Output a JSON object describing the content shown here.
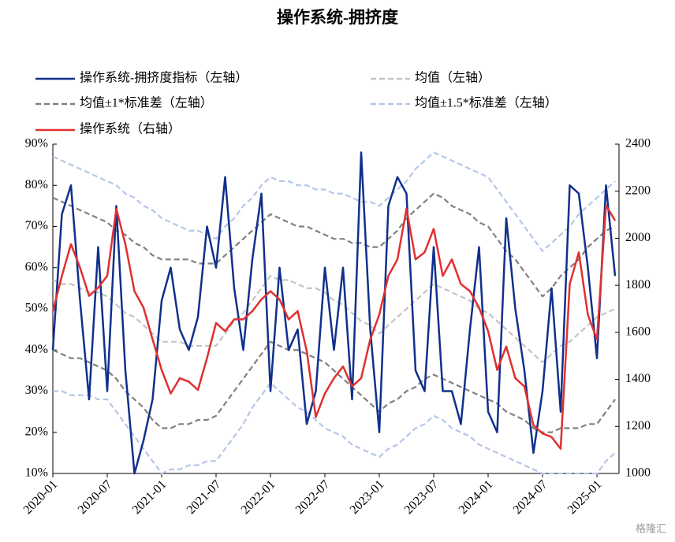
{
  "chart_data": {
    "type": "line",
    "title": "操作系统-拥挤度",
    "watermark": "格隆汇",
    "x": [
      "2020-01",
      "2020-02",
      "2020-03",
      "2020-04",
      "2020-05",
      "2020-06",
      "2020-07",
      "2020-08",
      "2020-09",
      "2020-10",
      "2020-11",
      "2020-12",
      "2021-01",
      "2021-02",
      "2021-03",
      "2021-04",
      "2021-05",
      "2021-06",
      "2021-07",
      "2021-08",
      "2021-09",
      "2021-10",
      "2021-11",
      "2021-12",
      "2022-01",
      "2022-02",
      "2022-03",
      "2022-04",
      "2022-05",
      "2022-06",
      "2022-07",
      "2022-08",
      "2022-09",
      "2022-10",
      "2022-11",
      "2022-12",
      "2023-01",
      "2023-02",
      "2023-03",
      "2023-04",
      "2023-05",
      "2023-06",
      "2023-07",
      "2023-08",
      "2023-09",
      "2023-10",
      "2023-11",
      "2023-12",
      "2024-01",
      "2024-02",
      "2024-03",
      "2024-04",
      "2024-05",
      "2024-06",
      "2024-07",
      "2024-08",
      "2024-09",
      "2024-10",
      "2024-11",
      "2024-12",
      "2025-01",
      "2025-02",
      "2025-03"
    ],
    "ylim": [
      10,
      90
    ],
    "yticks": [
      {
        "value": 10,
        "label": "10%"
      },
      {
        "value": 20,
        "label": "20%"
      },
      {
        "value": 30,
        "label": "30%"
      },
      {
        "value": 40,
        "label": "40%"
      },
      {
        "value": 50,
        "label": "50%"
      },
      {
        "value": 60,
        "label": "60%"
      },
      {
        "value": 70,
        "label": "70%"
      },
      {
        "value": 80,
        "label": "80%"
      },
      {
        "value": 90,
        "label": "90%"
      }
    ],
    "y2lim": [
      1000,
      2400
    ],
    "y2ticks": [
      1000,
      1200,
      1400,
      1600,
      1800,
      2000,
      2200,
      2400
    ],
    "series": [
      {
        "name": "均值±1.5*标准差（左轴）",
        "color": "#b4c7e7",
        "dashed": true,
        "upper": [
          87,
          86,
          85,
          84,
          83,
          82,
          81,
          80,
          78,
          77,
          75,
          74,
          72,
          71,
          70,
          69,
          69,
          68,
          67,
          70,
          72,
          75,
          77,
          80,
          82,
          81,
          81,
          80,
          80,
          79,
          79,
          78,
          78,
          77,
          76,
          76,
          75,
          77,
          79,
          81,
          84,
          86,
          88,
          87,
          86,
          85,
          84,
          83,
          82,
          79,
          76,
          73,
          70,
          67,
          64,
          66,
          68,
          70,
          73,
          75,
          77,
          79,
          81
        ],
        "lower": [
          30,
          30,
          29,
          29,
          29,
          28,
          28,
          25,
          22,
          19,
          16,
          13,
          10,
          11,
          11,
          12,
          12,
          13,
          13,
          16,
          19,
          22,
          26,
          29,
          32,
          30,
          28,
          26,
          25,
          23,
          21,
          20,
          19,
          17,
          16,
          15,
          14,
          16,
          17,
          19,
          21,
          22,
          24,
          23,
          21,
          20,
          19,
          17,
          16,
          15,
          14,
          13,
          12,
          11,
          10,
          10,
          10,
          10,
          10,
          10,
          10,
          13,
          15
        ]
      },
      {
        "name": "均值±1*标准差（左轴）",
        "color": "#808080",
        "dashed": true,
        "upper": [
          77,
          76,
          75,
          74,
          73,
          72,
          71,
          69,
          68,
          66,
          65,
          63,
          62,
          62,
          62,
          62,
          61,
          61,
          61,
          63,
          65,
          67,
          69,
          71,
          73,
          72,
          71,
          70,
          70,
          69,
          68,
          67,
          67,
          66,
          66,
          65,
          65,
          67,
          69,
          72,
          74,
          76,
          78,
          77,
          75,
          74,
          73,
          71,
          70,
          67,
          64,
          62,
          59,
          56,
          53,
          55,
          58,
          60,
          62,
          65,
          67,
          69,
          70
        ],
        "lower": [
          40,
          39,
          38,
          38,
          37,
          36,
          35,
          33,
          30,
          28,
          26,
          23,
          21,
          21,
          22,
          22,
          23,
          23,
          24,
          27,
          30,
          33,
          36,
          39,
          42,
          41,
          40,
          40,
          39,
          38,
          37,
          35,
          33,
          31,
          29,
          27,
          25,
          27,
          28,
          30,
          31,
          33,
          34,
          33,
          32,
          31,
          30,
          29,
          28,
          27,
          25,
          24,
          23,
          21,
          20,
          20,
          21,
          21,
          21,
          22,
          22,
          25,
          28
        ]
      },
      {
        "name": "均值（左轴）",
        "color": "#c4c4c4",
        "dashed": true,
        "values": [
          57,
          56,
          56,
          55,
          54,
          54,
          53,
          51,
          49,
          48,
          46,
          44,
          42,
          42,
          42,
          41,
          41,
          41,
          41,
          44,
          47,
          49,
          52,
          55,
          58,
          57,
          57,
          56,
          55,
          55,
          54,
          52,
          51,
          49,
          47,
          46,
          44,
          46,
          48,
          50,
          52,
          54,
          56,
          55,
          54,
          53,
          52,
          50,
          49,
          47,
          45,
          43,
          41,
          39,
          37,
          39,
          41,
          42,
          44,
          46,
          48,
          49,
          50
        ]
      },
      {
        "name": "操作系统-拥挤度指标（左轴）",
        "color": "#10308c",
        "dashed": false,
        "values": [
          40,
          73,
          80,
          52,
          28,
          65,
          30,
          75,
          35,
          10,
          18,
          28,
          52,
          60,
          45,
          40,
          48,
          70,
          60,
          82,
          55,
          40,
          62,
          78,
          30,
          60,
          40,
          45,
          22,
          30,
          60,
          40,
          60,
          28,
          88,
          45,
          20,
          75,
          82,
          78,
          35,
          30,
          65,
          30,
          30,
          22,
          45,
          65,
          25,
          20,
          72,
          50,
          35,
          15,
          30,
          55,
          25,
          80,
          78,
          60,
          38,
          80,
          58
        ]
      },
      {
        "name": "操作系统（右轴）",
        "color": "#e03030",
        "dashed": false,
        "axis": "y2",
        "values": [
          1690,
          1840,
          1975,
          1875,
          1755,
          1790,
          1840,
          2125,
          1975,
          1775,
          1705,
          1570,
          1440,
          1340,
          1405,
          1390,
          1355,
          1490,
          1640,
          1605,
          1655,
          1655,
          1690,
          1740,
          1775,
          1740,
          1655,
          1690,
          1520,
          1240,
          1340,
          1405,
          1455,
          1370,
          1405,
          1570,
          1675,
          1840,
          1910,
          2125,
          1910,
          1940,
          2040,
          1840,
          1910,
          1805,
          1775,
          1705,
          1605,
          1440,
          1540,
          1405,
          1370,
          1205,
          1170,
          1155,
          1105,
          1805,
          1940,
          1675,
          1570,
          2140,
          2075
        ]
      }
    ]
  }
}
